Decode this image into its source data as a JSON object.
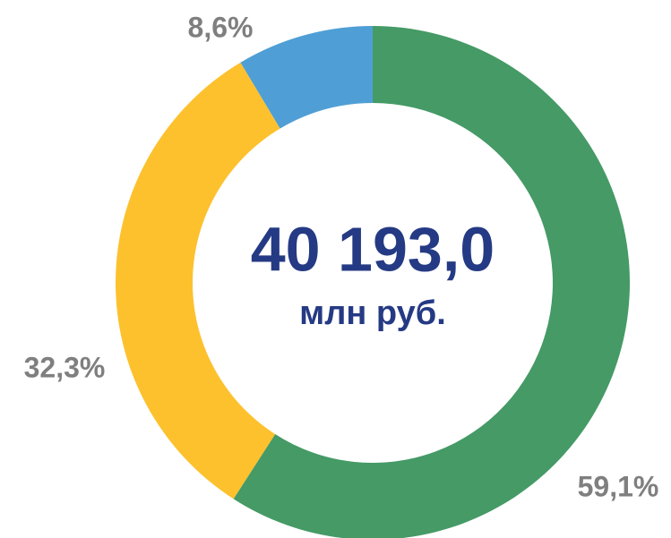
{
  "chart_data": {
    "type": "donut",
    "categories": [
      null,
      null,
      null
    ],
    "values": [
      59.1,
      32.3,
      8.6
    ],
    "value_labels": [
      "59,1%",
      "32,3%",
      "8,6%"
    ],
    "colors": [
      "#459a66",
      "#fdc12e",
      "#4f9fd6"
    ],
    "annotations": [
      "40 193,0",
      "млн руб."
    ]
  }
}
